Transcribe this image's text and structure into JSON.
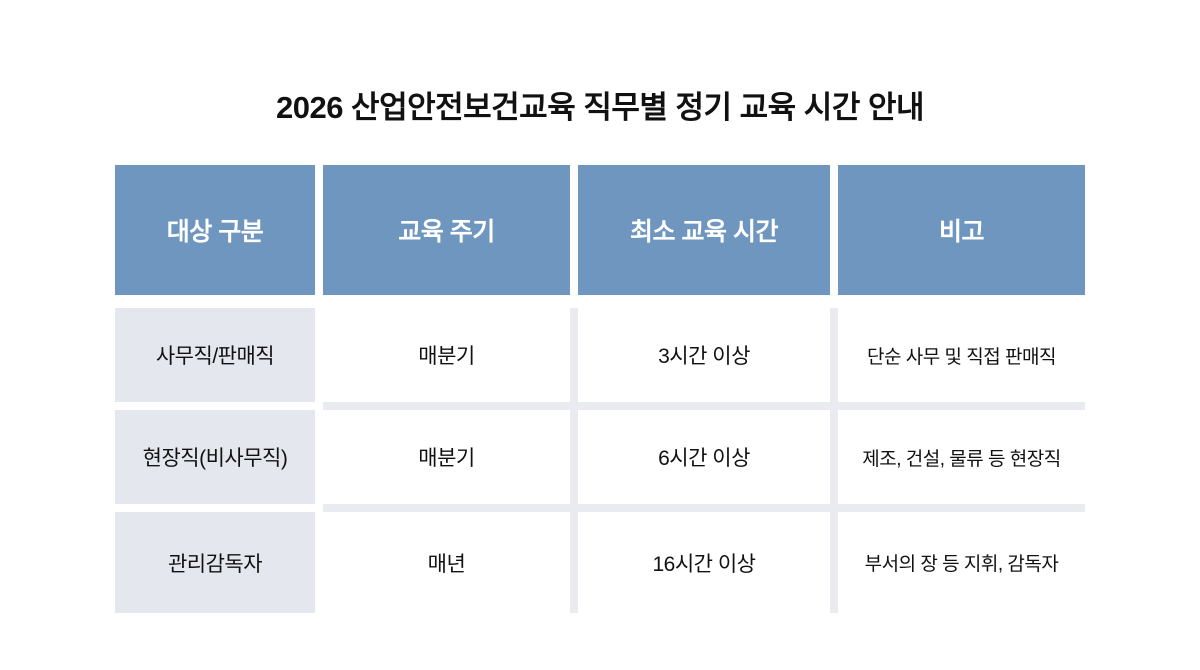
{
  "title": "2026 산업안전보건교육 직무별 정기 교육 시간 안내",
  "table": {
    "headers": [
      "대상 구분",
      "교육 주기",
      "최소 교육 시간",
      "비고"
    ],
    "rows": [
      {
        "target": "사무직/판매직",
        "cycle": "매분기",
        "min_hours": "3시간 이상",
        "note": "단순 사무 및 직접 판매직"
      },
      {
        "target": "현장직(비사무직)",
        "cycle": "매분기",
        "min_hours": "6시간 이상",
        "note": "제조, 건설, 물류 등 현장직"
      },
      {
        "target": "관리감독자",
        "cycle": "매년",
        "min_hours": "16시간 이상",
        "note": "부서의 장 등 지휘, 감독자"
      }
    ]
  },
  "colors": {
    "header_bg": "#6e96bf",
    "header_text": "#ffffff",
    "row_label_bg": "#e4e8ee",
    "divider": "#e9ebf1",
    "text": "#111111",
    "background": "#ffffff"
  }
}
